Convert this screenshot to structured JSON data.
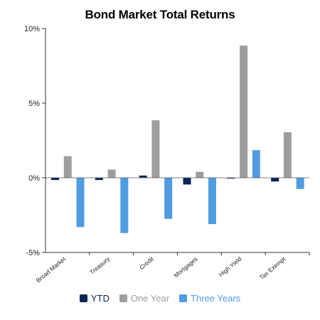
{
  "chart_data": {
    "type": "bar",
    "title": "Bond Market Total Returns",
    "categories": [
      "Broad Market",
      "Treasury",
      "Credit",
      "Mortgages",
      "High Yield",
      "Tax Exempt"
    ],
    "series": [
      {
        "name": "YTD",
        "color": "#0a2456",
        "values": [
          -0.15,
          -0.15,
          0.15,
          -0.45,
          -0.05,
          -0.25
        ]
      },
      {
        "name": "One Year",
        "color": "#9e9e9e",
        "values": [
          1.45,
          0.55,
          3.85,
          0.4,
          8.85,
          3.05
        ]
      },
      {
        "name": "Three Years",
        "color": "#4f9de0",
        "values": [
          -3.3,
          -3.7,
          -2.75,
          -3.1,
          1.85,
          -0.75
        ]
      }
    ],
    "ylim": [
      -5,
      10
    ],
    "yticks": [
      -5,
      0,
      5,
      10
    ],
    "ytick_labels": [
      "-5%",
      "0%",
      "5%",
      "10%"
    ],
    "grid": false,
    "legend_position": "bottom"
  }
}
